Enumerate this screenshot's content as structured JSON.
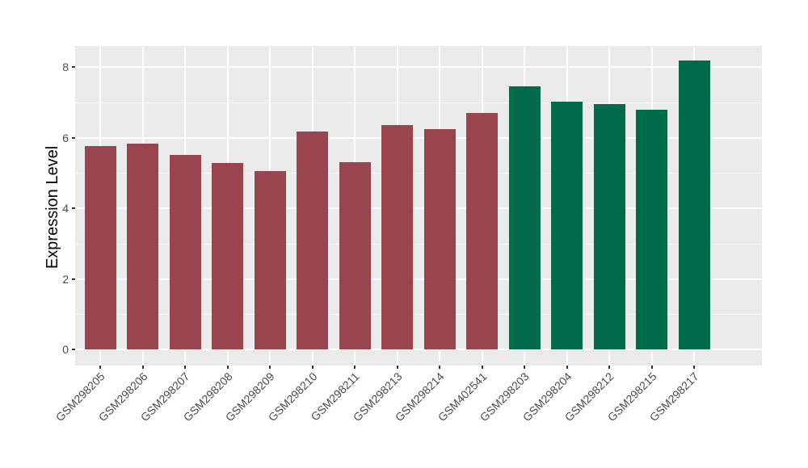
{
  "figure": {
    "background": "#ffffff",
    "panel_background": "#EBEBEB",
    "gridline_color": "#FFFFFF",
    "axis_text_color": "#4D4D4D",
    "axis_title_color": "#000000"
  },
  "chart_data": {
    "type": "bar",
    "title": "",
    "xlabel": "",
    "ylabel": "Expression Level",
    "ylim": [
      0,
      8.6
    ],
    "yticks": [
      0,
      2,
      4,
      6,
      8
    ],
    "yticks_minor": [
      1,
      3,
      5,
      7
    ],
    "grid": "on",
    "legend": "none",
    "categories": [
      "GSM298205",
      "GSM298206",
      "GSM298207",
      "GSM298208",
      "GSM298209",
      "GSM298210",
      "GSM298211",
      "GSM298213",
      "GSM298214",
      "GSM402541",
      "GSM298203",
      "GSM298204",
      "GSM298212",
      "GSM298215",
      "GSM298217"
    ],
    "series": [
      {
        "name": "Expression Level",
        "values": [
          5.75,
          5.82,
          5.5,
          5.28,
          5.05,
          6.17,
          5.3,
          6.35,
          6.25,
          6.7,
          7.45,
          7.02,
          6.95,
          6.8,
          8.18
        ]
      }
    ],
    "bar_colors": [
      "#9A4450",
      "#9A4450",
      "#9A4450",
      "#9A4450",
      "#9A4450",
      "#9A4450",
      "#9A4450",
      "#9A4450",
      "#9A4450",
      "#9A4450",
      "#006B48",
      "#006B48",
      "#006B48",
      "#006B48",
      "#006B48"
    ],
    "group_colors": {
      "maroon_group": "#9A4450",
      "green_group": "#006B48"
    }
  }
}
